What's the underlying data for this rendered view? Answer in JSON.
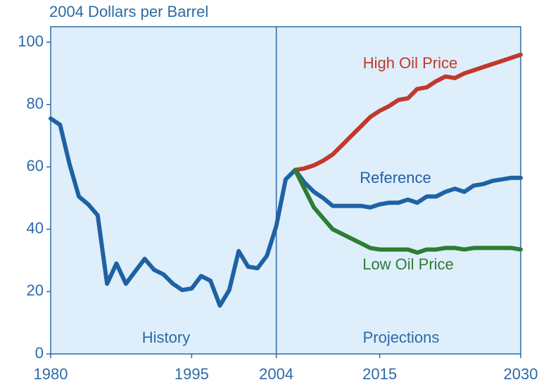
{
  "chart_data": {
    "type": "line",
    "y_label": "2004 Dollars per Barrel",
    "xlim": [
      1980,
      2030
    ],
    "ylim": [
      0,
      100
    ],
    "xticks": [
      1980,
      1995,
      2004,
      2015,
      2030
    ],
    "yticks": [
      0,
      20,
      40,
      60,
      80,
      100
    ],
    "divider_x": 2004,
    "regions": [
      "History",
      "Projections"
    ],
    "series": [
      {
        "color": "#1f62a3",
        "x": [
          1980,
          1981,
          1982,
          1983,
          1984,
          1985,
          1986,
          1987,
          1988,
          1989,
          1990,
          1991,
          1992,
          1993,
          1994,
          1995,
          1996,
          1997,
          1998,
          1999,
          2000,
          2001,
          2002,
          2003,
          2004,
          2005,
          2006
        ],
        "values": [
          75.5,
          73.5,
          61,
          50.5,
          48,
          44.5,
          22.5,
          29,
          22.5,
          26.5,
          30.5,
          27,
          25.5,
          22.5,
          20.5,
          21,
          25,
          23.5,
          15.5,
          20.5,
          33,
          28,
          27.5,
          31.5,
          41,
          56,
          59
        ]
      },
      {
        "name": "High Oil Price",
        "color": "#c0392b",
        "x": [
          2006,
          2007,
          2008,
          2009,
          2010,
          2011,
          2012,
          2013,
          2014,
          2015,
          2016,
          2017,
          2018,
          2019,
          2020,
          2021,
          2022,
          2023,
          2024,
          2025,
          2026,
          2027,
          2028,
          2029,
          2030
        ],
        "values": [
          59,
          59.5,
          60.5,
          62,
          64,
          67,
          70,
          73,
          76,
          78,
          79.5,
          81.5,
          82,
          85,
          85.5,
          87.5,
          89,
          88.5,
          90,
          91,
          92,
          93,
          94,
          95,
          96
        ]
      },
      {
        "name": "Reference",
        "color": "#1f62a3",
        "x": [
          2006,
          2007,
          2008,
          2009,
          2010,
          2011,
          2012,
          2013,
          2014,
          2015,
          2016,
          2017,
          2018,
          2019,
          2020,
          2021,
          2022,
          2023,
          2024,
          2025,
          2026,
          2027,
          2028,
          2029,
          2030
        ],
        "values": [
          59,
          55,
          52,
          50,
          47.5,
          47.5,
          47.5,
          47.5,
          47,
          48,
          48.5,
          48.5,
          49.5,
          48.5,
          50.5,
          50.5,
          52,
          53,
          52,
          54,
          54.5,
          55.5,
          56,
          56.5,
          56.5
        ]
      },
      {
        "name": "Low Oil Price",
        "color": "#2e7d32",
        "x": [
          2006,
          2007,
          2008,
          2009,
          2010,
          2011,
          2012,
          2013,
          2014,
          2015,
          2016,
          2017,
          2018,
          2019,
          2020,
          2021,
          2022,
          2023,
          2024,
          2025,
          2026,
          2027,
          2028,
          2029,
          2030
        ],
        "values": [
          59,
          53,
          47,
          43.5,
          40,
          38.5,
          37,
          35.5,
          34,
          33.5,
          33.5,
          33.5,
          33.5,
          32.5,
          33.5,
          33.5,
          34,
          34,
          33.5,
          34,
          34,
          34,
          34,
          34,
          33.5
        ]
      }
    ]
  }
}
